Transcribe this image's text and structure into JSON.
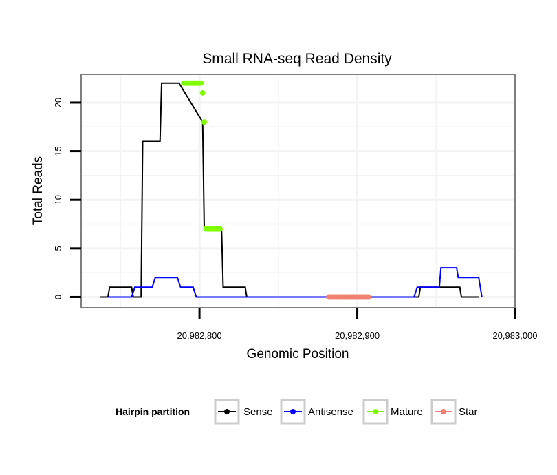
{
  "chart_data": {
    "type": "line",
    "title": "Small RNA-seq Read Density",
    "xlabel": "Genomic Position",
    "ylabel": "Total Reads",
    "xlim": [
      20982725,
      20983000
    ],
    "ylim": [
      -1.1,
      22.9
    ],
    "xticks": [
      {
        "value": 20982800,
        "label": "20,982,800"
      },
      {
        "value": 20982900,
        "label": "20,982,900"
      },
      {
        "value": 20983000,
        "label": "20,983,000"
      }
    ],
    "yticks": [
      {
        "value": 0,
        "label": "0"
      },
      {
        "value": 5,
        "label": "5"
      },
      {
        "value": 10,
        "label": "10"
      },
      {
        "value": 15,
        "label": "15"
      },
      {
        "value": 20,
        "label": "20"
      }
    ],
    "grid": true,
    "legend": {
      "title": "Hairpin partition",
      "placement": "bottom",
      "entries": [
        "Sense",
        "Antisense",
        "Mature",
        "Star"
      ]
    },
    "series": [
      {
        "name": "Sense",
        "color": "#000000",
        "style": "line",
        "x": [
          20982737,
          20982742,
          20982743,
          20982757,
          20982758,
          20982763,
          20982764,
          20982775,
          20982776,
          20982786,
          20982787,
          20982802,
          20982803,
          20982804,
          20982805,
          20982814,
          20982815,
          20982829,
          20982830,
          20982939,
          20982940,
          20982965,
          20982966,
          20982977
        ],
        "y": [
          0,
          0,
          1,
          1,
          0,
          0,
          16,
          16,
          22,
          22,
          22,
          18,
          7,
          7,
          7,
          7,
          1,
          1,
          0,
          0,
          1,
          1,
          0,
          0
        ]
      },
      {
        "name": "Antisense",
        "color": "#0000ff",
        "style": "line",
        "x": [
          20982742,
          20982757,
          20982759,
          20982770,
          20982772,
          20982778,
          20982786,
          20982788,
          20982796,
          20982798,
          20982827,
          20982936,
          20982938,
          20982952,
          20982953,
          20982963,
          20982964,
          20982977,
          20982979
        ],
        "y": [
          0,
          0,
          1,
          1,
          2,
          2,
          2,
          1,
          1,
          0,
          0,
          0,
          1,
          1,
          3,
          3,
          2,
          2,
          0
        ]
      },
      {
        "name": "Mature",
        "color": "#80ff00",
        "style": "points",
        "x": [
          20982790,
          20982791,
          20982792,
          20982793,
          20982794,
          20982795,
          20982796,
          20982797,
          20982798,
          20982799,
          20982800,
          20982801,
          20982802,
          20982803,
          20982804,
          20982805,
          20982806,
          20982807,
          20982808,
          20982809,
          20982810,
          20982811,
          20982812,
          20982813
        ],
        "y": [
          22,
          22,
          22,
          22,
          22,
          22,
          22,
          22,
          22,
          22,
          22,
          22,
          21,
          18,
          7,
          7,
          7,
          7,
          7,
          7,
          7,
          7,
          7,
          7
        ]
      },
      {
        "name": "Star",
        "color": "#f08070",
        "style": "points",
        "x": [
          20982882,
          20982883,
          20982884,
          20982885,
          20982886,
          20982887,
          20982888,
          20982889,
          20982890,
          20982891,
          20982892,
          20982893,
          20982894,
          20982895,
          20982896,
          20982897,
          20982898,
          20982899,
          20982900,
          20982901,
          20982902,
          20982903,
          20982904,
          20982905,
          20982906,
          20982907
        ],
        "y": [
          0,
          0,
          0,
          0,
          0,
          0,
          0,
          0,
          0,
          0,
          0,
          0,
          0,
          0,
          0,
          0,
          0,
          0,
          0,
          0,
          0,
          0,
          0,
          0,
          0,
          0
        ]
      }
    ]
  }
}
